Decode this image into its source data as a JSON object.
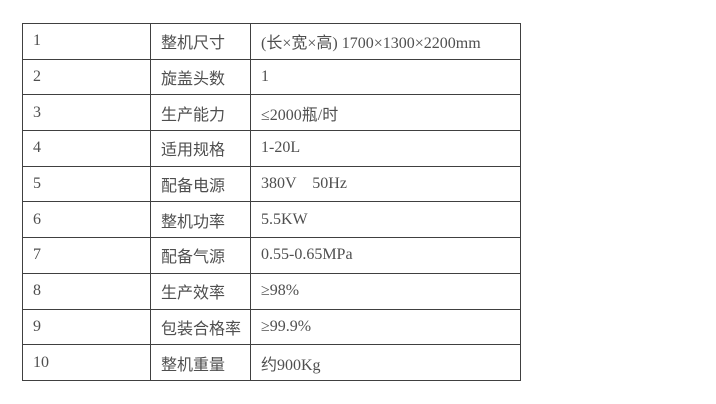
{
  "table": {
    "description": "product-specification-table",
    "colors": {
      "border": "#404040",
      "text": "#4f4f4f",
      "background": "#ffffff"
    },
    "rows": [
      {
        "no": "1",
        "label": "整机尺寸",
        "value": "(长×宽×高) 1700×1300×2200mm"
      },
      {
        "no": "2",
        "label": "旋盖头数",
        "value": "1"
      },
      {
        "no": "3",
        "label": "生产能力",
        "value": "≤2000瓶/时"
      },
      {
        "no": "4",
        "label": "适用规格",
        "value": "1-20L"
      },
      {
        "no": "5",
        "label": "配备电源",
        "value": "380V    50Hz"
      },
      {
        "no": "6",
        "label": "整机功率",
        "value": "5.5KW"
      },
      {
        "no": "7",
        "label": "配备气源",
        "value": "0.55-0.65MPa"
      },
      {
        "no": "8",
        "label": "生产效率",
        "value": "≥98%"
      },
      {
        "no": "9",
        "label": "包装合格率",
        "value": "≥99.9%"
      },
      {
        "no": "10",
        "label": "整机重量",
        "value": "约900Kg"
      }
    ]
  }
}
